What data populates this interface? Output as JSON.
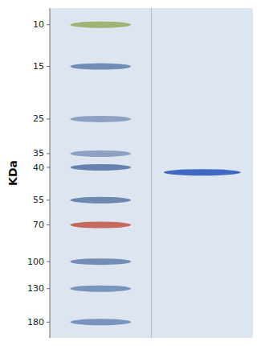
{
  "chart_data": {
    "type": "gel",
    "log": "y",
    "ylabel": "KDa",
    "ylim": [
      210,
      8.5
    ],
    "yticks": [
      180,
      130,
      100,
      70,
      55,
      40,
      35,
      25,
      15,
      10
    ],
    "tick_labels": "y",
    "grid": false,
    "series": [
      {
        "values": [
          180,
          130,
          100,
          70,
          55,
          40,
          35,
          25,
          15,
          10
        ],
        "colors": [
          "#6080b0",
          "#6080b0",
          "#5878a8",
          "#c04838",
          "#5070a0",
          "#4868a0",
          "#7890b8",
          "#7890b8",
          "#5878a8",
          "#90a855"
        ]
      },
      {
        "values": [
          42
        ],
        "colors": [
          "#1848b8"
        ]
      }
    ]
  }
}
